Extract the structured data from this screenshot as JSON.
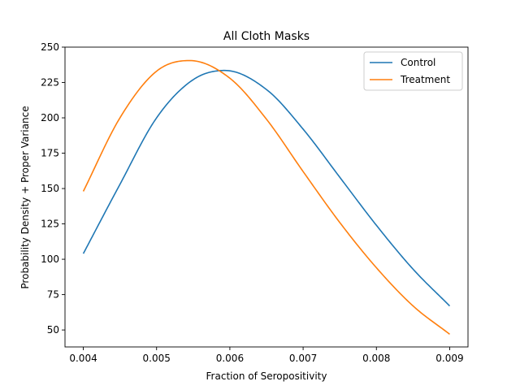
{
  "chart_data": {
    "type": "line",
    "title": "All Cloth Masks",
    "xlabel": "Fraction of Seropositivity",
    "ylabel": "Probability Density + Proper Variance",
    "xlim": [
      0.00375,
      0.00925
    ],
    "ylim": [
      38,
      250
    ],
    "xticks": [
      0.004,
      0.005,
      0.006,
      0.007,
      0.008,
      0.009
    ],
    "xtick_labels": [
      "0.004",
      "0.005",
      "0.006",
      "0.007",
      "0.008",
      "0.009"
    ],
    "yticks": [
      50,
      75,
      100,
      125,
      150,
      175,
      200,
      225,
      250
    ],
    "ytick_labels": [
      "50",
      "75",
      "100",
      "125",
      "150",
      "175",
      "200",
      "225",
      "250"
    ],
    "grid": false,
    "legend_position": "top-right",
    "series": [
      {
        "name": "Control",
        "color": "#1f77b4",
        "peak_x": 0.00593,
        "peak_y": 233.5,
        "x": [
          0.004,
          0.0045,
          0.005,
          0.0055,
          0.006,
          0.0065,
          0.007,
          0.0075,
          0.008,
          0.0085,
          0.009
        ],
        "y": [
          104,
          153,
          200,
          227,
          233,
          220,
          192,
          158,
          124,
          93,
          67
        ]
      },
      {
        "name": "Treatment",
        "color": "#ff7f0e",
        "peak_x": 0.00545,
        "peak_y": 240.5,
        "x": [
          0.004,
          0.0045,
          0.005,
          0.0055,
          0.006,
          0.0065,
          0.007,
          0.0075,
          0.008,
          0.0085,
          0.009
        ],
        "y": [
          148,
          200,
          233,
          240,
          228,
          199,
          162,
          126,
          94,
          67,
          47
        ]
      }
    ]
  }
}
